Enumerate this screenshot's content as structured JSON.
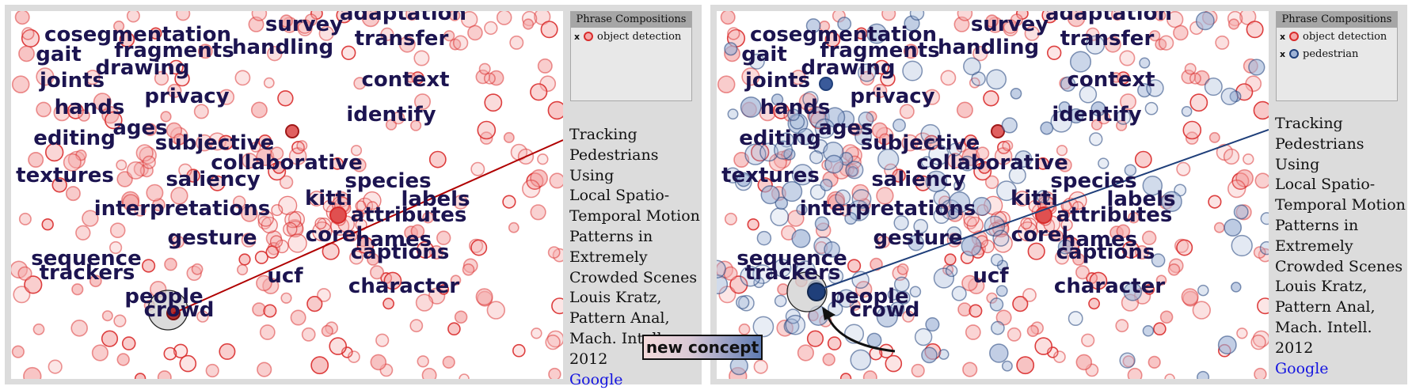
{
  "colors": {
    "red_stroke": "#d92b2b",
    "red_fill": "#f4a8a8",
    "blue_stroke": "#1f3f7a",
    "blue_fill": "#9fb3d6",
    "word_color": "#1c1450",
    "left_line": "#b00000",
    "right_line": "#1f3f7a"
  },
  "words": [
    "adaptation",
    "cosegmentation",
    "survey",
    "transfer",
    "gait",
    "fragments",
    "handling",
    "drawing",
    "joints",
    "context",
    "privacy",
    "hands",
    "identify",
    "ages",
    "editing",
    "subjective",
    "collaborative",
    "textures",
    "saliency",
    "species",
    "kitti",
    "labels",
    "interpretations",
    "attributes",
    "gesture",
    "corel",
    "names",
    "sequence",
    "captions",
    "trackers",
    "ucf",
    "character",
    "people",
    "crowd"
  ],
  "left": {
    "legend_title": "Phrase Compositions",
    "legend_items": [
      {
        "mark": "x",
        "label": "object detection",
        "color": "red"
      }
    ],
    "paper": {
      "title_lines": [
        "Tracking",
        "Pedestrians Using",
        "Local Spatio-",
        "Temporal Motion",
        "Patterns in",
        "Extremely",
        "Crowded Scenes"
      ],
      "author": "Louis Kratz,",
      "venue_lines": [
        "Pattern Anal,",
        "Mach. Intell."
      ],
      "year": "2012",
      "link": "Google"
    }
  },
  "right": {
    "legend_title": "Phrase Compositions",
    "legend_items": [
      {
        "mark": "x",
        "label": "object detection",
        "color": "red"
      },
      {
        "mark": "x",
        "label": "pedestrian",
        "color": "blue"
      }
    ],
    "paper": {
      "title_lines": [
        "Tracking",
        "Pedestrians Using",
        "Local Spatio-",
        "Temporal Motion",
        "Patterns in",
        "Extremely",
        "Crowded Scenes"
      ],
      "author": "Louis Kratz,",
      "venue_lines": [
        "Pattern Anal,",
        "Mach. Intell."
      ],
      "year": "2012",
      "link": "Google"
    }
  },
  "badge": "new concept"
}
